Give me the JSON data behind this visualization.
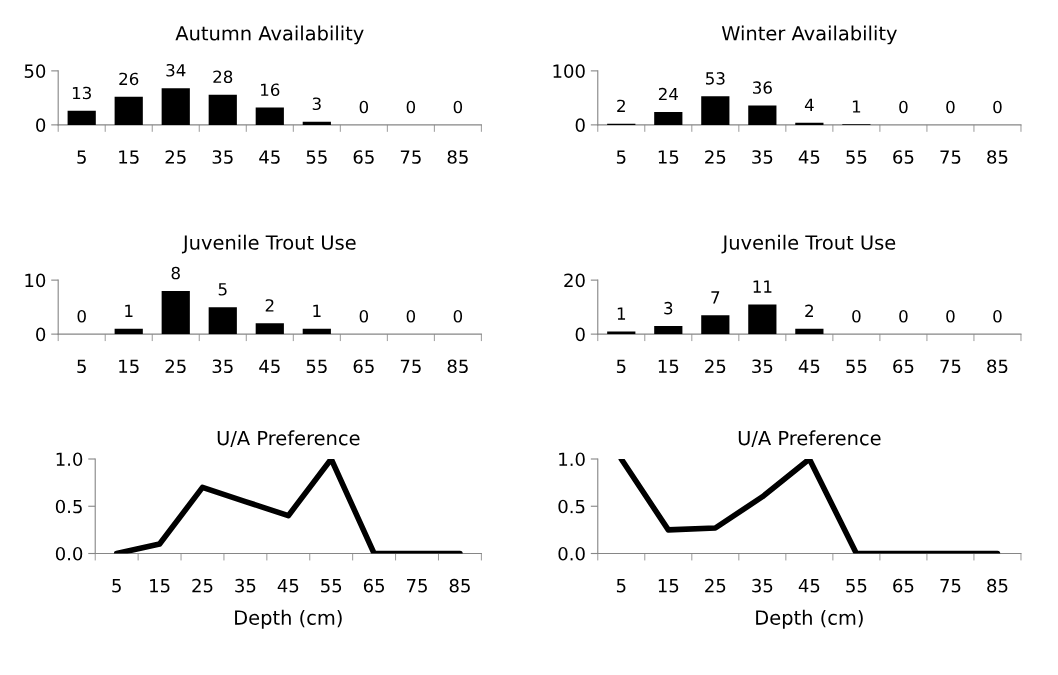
{
  "chart_data": [
    {
      "type": "bar",
      "title": "Autumn Availability",
      "categories": [
        "5",
        "15",
        "25",
        "35",
        "45",
        "55",
        "65",
        "75",
        "85"
      ],
      "values": [
        13,
        26,
        34,
        28,
        16,
        3,
        0,
        0,
        0
      ],
      "color": "#000000",
      "ylim": [
        0,
        50
      ],
      "yticks": [
        0,
        50
      ],
      "data_labels": true,
      "grid": false
    },
    {
      "type": "bar",
      "title": "Winter Availability",
      "categories": [
        "5",
        "15",
        "25",
        "35",
        "45",
        "55",
        "65",
        "75",
        "85"
      ],
      "values": [
        2,
        24,
        53,
        36,
        4,
        1,
        0,
        0,
        0
      ],
      "color": "#000000",
      "ylim": [
        0,
        100
      ],
      "yticks": [
        0,
        100
      ],
      "data_labels": true,
      "grid": false
    },
    {
      "type": "bar",
      "title": "Juvenile Trout Use",
      "categories": [
        "5",
        "15",
        "25",
        "35",
        "45",
        "55",
        "65",
        "75",
        "85"
      ],
      "values": [
        0,
        1,
        8,
        5,
        2,
        1,
        0,
        0,
        0
      ],
      "color": "#000000",
      "ylim": [
        0,
        10
      ],
      "yticks": [
        0,
        10
      ],
      "data_labels": true,
      "grid": false
    },
    {
      "type": "bar",
      "title": "Juvenile Trout Use",
      "categories": [
        "5",
        "15",
        "25",
        "35",
        "45",
        "55",
        "65",
        "75",
        "85"
      ],
      "values": [
        1,
        3,
        7,
        11,
        2,
        0,
        0,
        0,
        0
      ],
      "color": "#000000",
      "ylim": [
        0,
        20
      ],
      "yticks": [
        0,
        20
      ],
      "data_labels": true,
      "grid": false
    },
    {
      "type": "line",
      "title": "U/A Preference",
      "xlabel": "Depth (cm)",
      "categories": [
        "5",
        "15",
        "25",
        "35",
        "45",
        "55",
        "65",
        "75",
        "85"
      ],
      "values": [
        0,
        0.1,
        0.7,
        0.55,
        0.4,
        1.0,
        0,
        0,
        0
      ],
      "color": "#000000",
      "ylim": [
        0,
        1
      ],
      "yticks": [
        {
          "value": 0,
          "label": "0.0"
        },
        {
          "value": 0.5,
          "label": "0.5"
        },
        {
          "value": 1,
          "label": "1.0"
        }
      ],
      "line_style": "solid",
      "marker": "none",
      "grid": false
    },
    {
      "type": "line",
      "title": "U/A Preference",
      "xlabel": "Depth (cm)",
      "categories": [
        "5",
        "15",
        "25",
        "35",
        "45",
        "55",
        "65",
        "75",
        "85"
      ],
      "values": [
        1.0,
        0.25,
        0.27,
        0.6,
        1.0,
        0,
        0,
        0,
        0
      ],
      "color": "#000000",
      "ylim": [
        0,
        1
      ],
      "yticks": [
        {
          "value": 0,
          "label": "0.0"
        },
        {
          "value": 0.5,
          "label": "0.5"
        },
        {
          "value": 1,
          "label": "1.0"
        }
      ],
      "line_style": "solid",
      "marker": "none",
      "grid": false
    }
  ]
}
